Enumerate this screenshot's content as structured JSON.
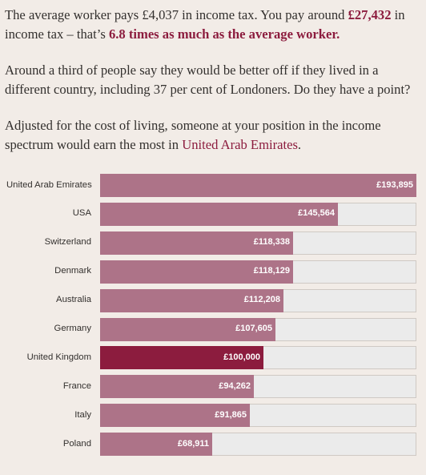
{
  "intro": {
    "p1": {
      "text_a": "The average worker pays £4,037 in income tax. You pay around ",
      "you_pay": "£27,432",
      "text_b": " in income tax – that’s ",
      "times": "6.8 times as much as the average worker."
    },
    "p2": {
      "text": "Around a third of people say they would be better off if they lived in a different country, including 37 per cent of Londoners. Do they have a point?"
    },
    "p3": {
      "text_a": "Adjusted for the cost of living, someone at your position in the income spectrum would earn the most in ",
      "top_country": "United Arab Emirates",
      "text_b": "."
    }
  },
  "colors": {
    "bar": "#ad7388",
    "highlight": "#8c1c3e",
    "track": "#ebebeb",
    "accent": "#8c1c3e"
  },
  "chart_data": {
    "type": "bar",
    "orientation": "horizontal",
    "categories": [
      "United Arab Emirates",
      "USA",
      "Switzerland",
      "Denmark",
      "Australia",
      "Germany",
      "United Kingdom",
      "France",
      "Italy",
      "Poland"
    ],
    "values": [
      193895,
      145564,
      118338,
      118129,
      112208,
      107605,
      100000,
      94262,
      91865,
      68911
    ],
    "value_labels": [
      "£193,895",
      "£145,564",
      "£118,338",
      "£118,129",
      "£112,208",
      "£107,605",
      "£100,000",
      "£94,262",
      "£91,865",
      "£68,911"
    ],
    "highlight": "United Kingdom",
    "xlim": [
      0,
      193895
    ],
    "grid": false,
    "title": "",
    "xlabel": "",
    "ylabel": ""
  }
}
